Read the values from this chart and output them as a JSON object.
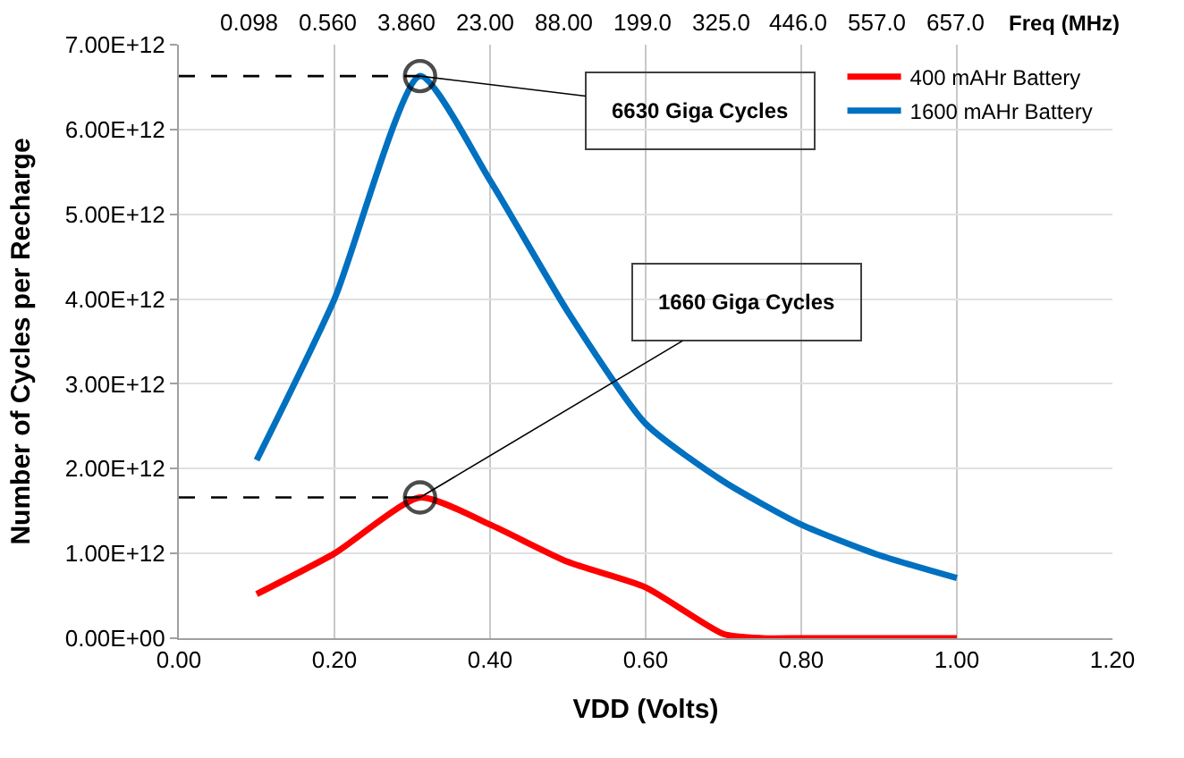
{
  "chart_data": {
    "type": "line",
    "xlabel": "VDD (Volts)",
    "ylabel": "Number of Cycles per Recharge",
    "x2label": "Freq (MHz)",
    "xlim": [
      0,
      1.2
    ],
    "xticks": [
      {
        "value": 0,
        "label": "0.00"
      },
      {
        "value": 0.2,
        "label": "0.20"
      },
      {
        "value": 0.4,
        "label": "0.40"
      },
      {
        "value": 0.6,
        "label": "0.60"
      },
      {
        "value": 0.8,
        "label": "0.80"
      },
      {
        "value": 1.0,
        "label": "1.00"
      },
      {
        "value": 1.2,
        "label": "1.20"
      }
    ],
    "ylim": [
      0,
      7000000000000.0
    ],
    "yticks": [
      {
        "value": 0,
        "label": "0.00E+00"
      },
      {
        "value": 1000000000000.0,
        "label": "1.00E+12"
      },
      {
        "value": 2000000000000.0,
        "label": "2.00E+12"
      },
      {
        "value": 3000000000000.0,
        "label": "3.00E+12"
      },
      {
        "value": 4000000000000.0,
        "label": "4.00E+12"
      },
      {
        "value": 5000000000000.0,
        "label": "5.00E+12"
      },
      {
        "value": 6000000000000.0,
        "label": "6.00E+12"
      },
      {
        "value": 7000000000000.0,
        "label": "7.00E+12"
      }
    ],
    "grid": true,
    "legend": "top right",
    "marker": "none",
    "line_style": "solid",
    "series": [
      {
        "name": "400 mAHr Battery",
        "color": "#ff0000",
        "x": [
          0.1,
          0.2,
          0.31,
          0.4,
          0.5,
          0.6,
          0.7,
          0.75,
          0.8,
          0.9,
          1.0
        ],
        "values": [
          520000000000.0,
          1000000000000.0,
          1660000000000.0,
          1340000000000.0,
          900000000000.0,
          600000000000.0,
          50000000000.0,
          0,
          0,
          0,
          0
        ]
      },
      {
        "name": "1600 mAHr Battery",
        "color": "#0070c0",
        "x": [
          0.1,
          0.2,
          0.31,
          0.4,
          0.5,
          0.6,
          0.7,
          0.8,
          0.9,
          1.0
        ],
        "values": [
          2100000000000.0,
          4000000000000.0,
          6630000000000.0,
          5400000000000.0,
          3850000000000.0,
          2530000000000.0,
          1850000000000.0,
          1340000000000.0,
          980000000000.0,
          710000000000.0
        ]
      },
      {
        "color": "#000000",
        "line_style": "dashed",
        "marker": "circle",
        "x": [
          0,
          0.31
        ],
        "values": [
          6630000000000.0,
          6630000000000.0
        ]
      },
      {
        "color": "#000000",
        "line_style": "dashed",
        "marker": "circle",
        "x": [
          0,
          0.31
        ],
        "values": [
          1660000000000.0,
          1660000000000.0
        ]
      }
    ],
    "annotations": [
      "0.098",
      "0.560",
      "3.860",
      "23.00",
      "88.00",
      "199.0",
      "325.0",
      "446.0",
      "557.0",
      "657.0",
      {
        "text": "6630 Giga Cycles",
        "x": 0.31,
        "y": 6630000000000.0
      },
      {
        "text": "1660 Giga Cycles",
        "x": 0.31,
        "y": 1660000000000.0
      }
    ]
  }
}
